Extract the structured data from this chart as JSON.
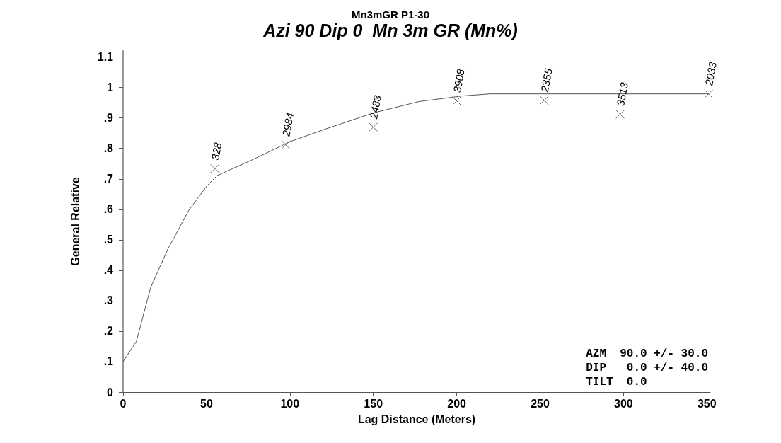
{
  "chart_data": {
    "type": "scatter",
    "title": "Mn3mGR P1-30",
    "subtitle": "Azi 90 Dip 0  Mn 3m GR (Mn%)",
    "xlabel": "Lag Distance (Meters)",
    "ylabel": "General Relative",
    "xlim": [
      0,
      352
    ],
    "xticks": [
      0,
      50,
      100,
      150,
      200,
      250,
      300,
      350
    ],
    "ylim": [
      0,
      1.12
    ],
    "yticks": [
      0,
      {
        "value": 0.1,
        "label": ".1"
      },
      {
        "value": 0.2,
        "label": ".2"
      },
      {
        "value": 0.3,
        "label": ".3"
      },
      {
        "value": 0.4,
        "label": ".4"
      },
      {
        "value": 0.5,
        "label": ".5"
      },
      {
        "value": 0.6,
        "label": ".6"
      },
      {
        "value": 0.7,
        "label": ".7"
      },
      {
        "value": 0.8,
        "label": ".8"
      },
      {
        "value": 0.9,
        "label": ".9"
      },
      1,
      1.1
    ],
    "grid": false,
    "series": [
      {
        "marker": "cross",
        "color": "#444444",
        "x": [
          55,
          97.5,
          150,
          200,
          252.5,
          298,
          351
        ],
        "values": [
          0.734,
          0.812,
          0.87,
          0.956,
          0.958,
          0.912,
          0.979
        ]
      },
      {
        "type": "line",
        "marker": "none",
        "color": "#555555",
        "x": [
          0,
          8,
          16.5,
          26.7,
          39.4,
          50.4,
          56.4,
          78.8,
          100,
          121,
          150.4,
          177.5,
          203,
          220,
          351
        ],
        "values": [
          0.1,
          0.167,
          0.343,
          0.468,
          0.597,
          0.678,
          0.711,
          0.766,
          0.822,
          0.863,
          0.917,
          0.954,
          0.972,
          0.979,
          0.979
        ]
      }
    ],
    "annotations": [
      {
        "text": "328",
        "x": 55,
        "y": 0.734
      },
      {
        "text": "2984",
        "x": 97.5,
        "y": 0.812
      },
      {
        "text": "2483",
        "x": 150,
        "y": 0.87
      },
      {
        "text": "3908",
        "x": 200,
        "y": 0.956
      },
      {
        "text": "2355",
        "x": 252.5,
        "y": 0.958
      },
      {
        "text": "3513",
        "x": 298,
        "y": 0.912
      },
      {
        "text": "2033",
        "x": 351,
        "y": 0.979
      },
      "AZM  90.0 +/- 30.0",
      "DIP   0.0 +/- 40.0",
      "TILT  0.0"
    ]
  }
}
